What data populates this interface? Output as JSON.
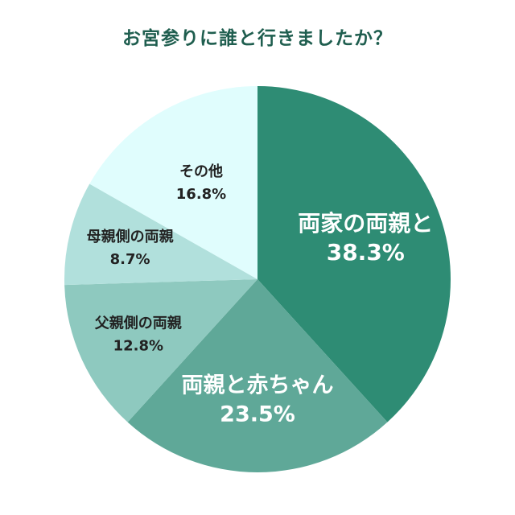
{
  "chart_data": {
    "type": "pie",
    "title": "お宮参りに誰と行きましたか？",
    "slices": [
      {
        "label": "両家の両親と",
        "value": 38.3,
        "value_label": "38.3%",
        "color": "#2e8c74",
        "text_color": "#ffffff"
      },
      {
        "label": "両親と赤ちゃん",
        "value": 23.5,
        "value_label": "23.5%",
        "color": "#5fa898",
        "text_color": "#ffffff"
      },
      {
        "label": "父親側の両親",
        "value": 12.8,
        "value_label": "12.8%",
        "color": "#8ec9bf",
        "text_color": "#222222"
      },
      {
        "label": "母親側の両親",
        "value": 8.7,
        "value_label": "8.7%",
        "color": "#b1e0dc",
        "text_color": "#222222"
      },
      {
        "label": "その他",
        "value": 16.8,
        "value_label": "16.8%",
        "color": "#e0fdfd",
        "text_color": "#222222"
      }
    ],
    "start": "12 o'clock",
    "direction": "clockwise"
  }
}
